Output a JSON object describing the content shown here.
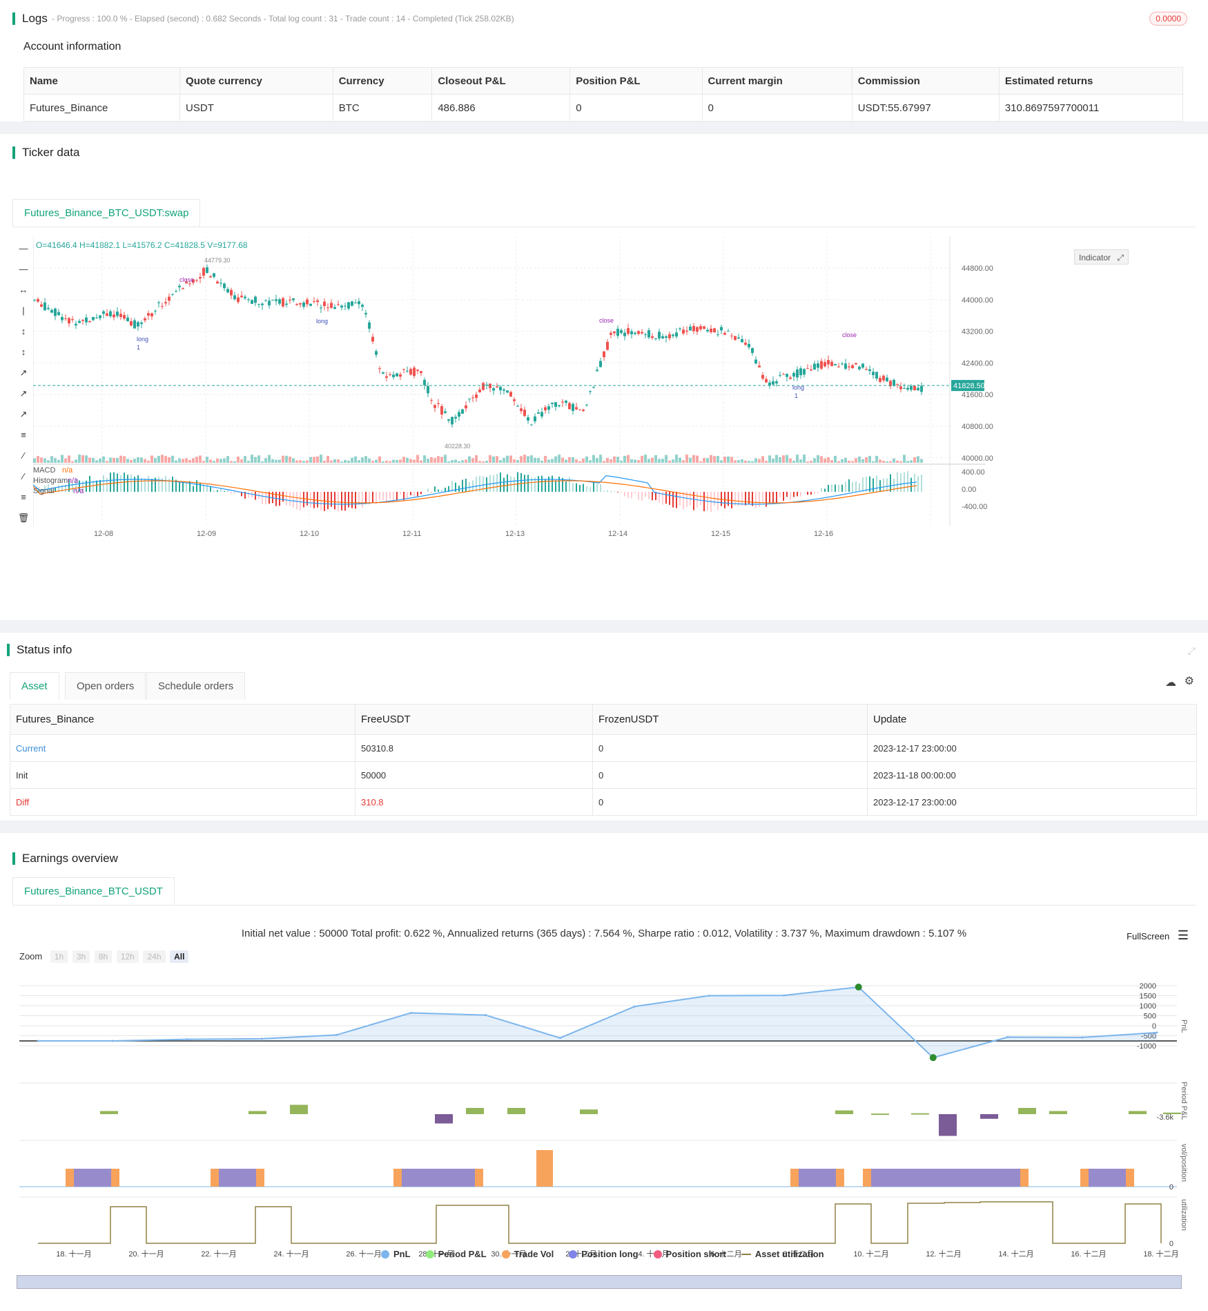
{
  "logs": {
    "title": "Logs",
    "progress_text": "- Progress : 100.0 % - Elapsed (second) : 0.682  Seconds - Total log count : 31 - Trade count : 14 - Completed (Tick 258.02KB)",
    "badge": "0.0000"
  },
  "account": {
    "title": "Account information",
    "headers": [
      "Name",
      "Quote currency",
      "Currency",
      "Closeout P&L",
      "Position P&L",
      "Current margin",
      "Commission",
      "Estimated returns"
    ],
    "row": [
      "Futures_Binance",
      "USDT",
      "BTC",
      "486.886",
      "0",
      "0",
      "USDT:55.67997",
      "310.8697597700011"
    ]
  },
  "ticker": {
    "title": "Ticker data",
    "tab": "Futures_Binance_BTC_USDT:swap",
    "ohlc": "O=41646.4 H=41882.1 L=41576.2 C=41828.5 V=9177.68",
    "indicator_btn": "Indicator",
    "price_ticks": [
      "44800.00",
      "44000.00",
      "43200.00",
      "42400.00",
      "41600.00",
      "40800.00",
      "40000.00"
    ],
    "current_price": "41828.50",
    "high_label": "44779.30",
    "low_label": "40228.30",
    "macd_ticks": [
      "400.00",
      "0.00",
      "-400.00"
    ],
    "date_ticks": [
      "12-08",
      "12-09",
      "12-10",
      "12-11",
      "12-13",
      "12-14",
      "12-15",
      "12-16"
    ],
    "macd_legend": [
      {
        "name": "MACD",
        "value": "n/a"
      },
      {
        "name": "Histogram",
        "value": "n/a"
      },
      {
        "name": "Signal",
        "value": "n/a"
      }
    ],
    "markers": {
      "close": "close",
      "long": "long",
      "one": "1"
    },
    "colors": {
      "up": "#26a69a",
      "down": "#ef5350",
      "macd": "#2196f3",
      "signal": "#ff6d00"
    }
  },
  "status": {
    "title": "Status info",
    "tabs": [
      "Asset",
      "Open orders",
      "Schedule orders"
    ],
    "headers": [
      "Futures_Binance",
      "FreeUSDT",
      "FrozenUSDT",
      "Update"
    ],
    "rows": [
      [
        "Current",
        "50310.8",
        "0",
        "2023-12-17 23:00:00"
      ],
      [
        "Init",
        "50000",
        "0",
        "2023-11-18 00:00:00"
      ],
      [
        "Diff",
        "310.8",
        "0",
        "2023-12-17 23:00:00"
      ]
    ]
  },
  "earnings": {
    "title": "Earnings overview",
    "tab": "Futures_Binance_BTC_USDT",
    "summary": "Initial net value : 50000 Total profit: 0.622 %, Annualized returns (365 days) : 7.564 %, Sharpe ratio : 0.012, Volatility : 3.737 %, Maximum drawdown : 5.107 %",
    "fullscreen": "FullScreen",
    "zoom_label": "Zoom",
    "zoom_buttons": [
      "1h",
      "3h",
      "8h",
      "12h",
      "24h",
      "All"
    ],
    "pnl_ticks": [
      "2000",
      "1500",
      "1000",
      "500",
      "0",
      "-500",
      "-1000"
    ],
    "period_tick": "-3.6k",
    "zero_tick": "0",
    "axis_titles": [
      "PnL",
      "Period P&L",
      "vol/position",
      "utilization"
    ],
    "date_ticks": [
      "18. 十一月",
      "20. 十一月",
      "22. 十一月",
      "24. 十一月",
      "26. 十一月",
      "28. 十一月",
      "30. 十一月",
      "2. 十二月",
      "4. 十二月",
      "6. 十二月",
      "8. 十二月",
      "10. 十二月",
      "12. 十二月",
      "14. 十二月",
      "16. 十二月",
      "18. 十二月"
    ],
    "legend": [
      {
        "name": "PnL",
        "color": "#7cb5ec"
      },
      {
        "name": "Period P&L",
        "color": "#90ed7d"
      },
      {
        "name": "Trade Vol",
        "color": "#f7a35c"
      },
      {
        "name": "Position long",
        "color": "#8085e9"
      },
      {
        "name": "Position short",
        "color": "#f15c80"
      },
      {
        "name": "Asset utilization",
        "color": "#8d8043"
      }
    ]
  },
  "chart_data": {
    "type": "line",
    "title": "",
    "x": [
      "18. 十一月",
      "20. 十一月",
      "22. 十一月",
      "24. 十一月",
      "26. 十一月",
      "28. 十一月",
      "30. 十一月",
      "2. 十二月",
      "4. 十二月",
      "6. 十二月",
      "8. 十二月",
      "10. 十二月",
      "12. 十二月",
      "14. 十二月",
      "16. 十二月",
      "18. 十二月"
    ],
    "series": [
      {
        "name": "PnL",
        "values": [
          0,
          0,
          60,
          80,
          220,
          1040,
          960,
          110,
          1280,
          1680,
          1690,
          2000,
          -620,
          140,
          130,
          310
        ]
      }
    ],
    "ylim": [
      -1000,
      2000
    ]
  }
}
